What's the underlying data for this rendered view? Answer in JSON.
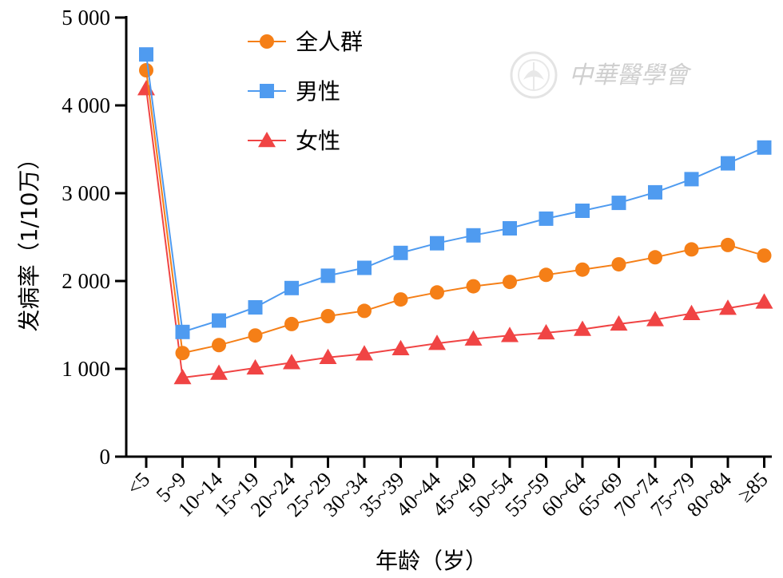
{
  "chart_data": {
    "type": "line",
    "xlabel": "年龄（岁）",
    "ylabel": "发病率（1/10万）",
    "ylim": [
      0,
      5000
    ],
    "yticks": [
      0,
      1000,
      2000,
      3000,
      4000,
      5000
    ],
    "ytick_labels": [
      "0",
      "1 000",
      "2 000",
      "3 000",
      "4 000",
      "5 000"
    ],
    "categories": [
      "<5",
      "5~9",
      "10~14",
      "15~19",
      "20~24",
      "25~29",
      "30~34",
      "35~39",
      "40~44",
      "45~49",
      "50~54",
      "55~59",
      "60~64",
      "65~69",
      "70~74",
      "75~79",
      "80~84",
      "≥85"
    ],
    "legend_position": "top-left",
    "grid": false,
    "series": [
      {
        "name": "全人群",
        "marker": "circle",
        "color": "#F57F17",
        "values": [
          4400,
          1180,
          1270,
          1380,
          1510,
          1600,
          1660,
          1790,
          1870,
          1940,
          1990,
          2070,
          2130,
          2190,
          2270,
          2360,
          2410,
          2290
        ]
      },
      {
        "name": "男性",
        "marker": "square",
        "color": "#4F9BF0",
        "values": [
          4580,
          1420,
          1550,
          1700,
          1920,
          2060,
          2150,
          2320,
          2430,
          2520,
          2600,
          2710,
          2800,
          2890,
          3010,
          3160,
          3340,
          3520
        ]
      },
      {
        "name": "女性",
        "marker": "triangle",
        "color": "#F04444",
        "values": [
          4190,
          900,
          950,
          1010,
          1070,
          1130,
          1170,
          1230,
          1290,
          1340,
          1380,
          1410,
          1450,
          1510,
          1560,
          1630,
          1690,
          1760
        ]
      }
    ]
  },
  "watermark": {
    "text": "中華醫學會",
    "icon": "society-seal-icon"
  }
}
